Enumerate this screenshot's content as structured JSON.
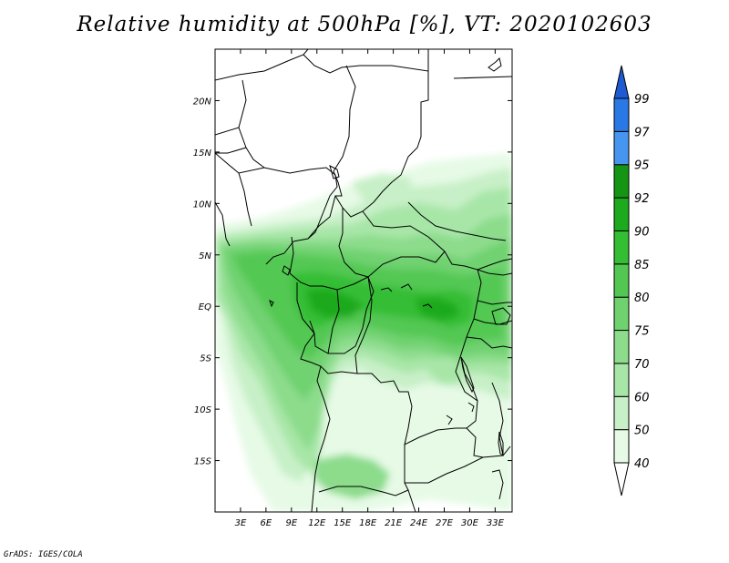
{
  "title": "Relative humidity at 500hPa [%], VT: 2020102603",
  "credit": "GrADS: IGES/COLA",
  "map": {
    "lon_range": [
      0,
      35
    ],
    "lat_range": [
      -20,
      25
    ],
    "lon_ticks": [
      "3E",
      "6E",
      "9E",
      "12E",
      "15E",
      "18E",
      "21E",
      "24E",
      "27E",
      "30E",
      "33E"
    ],
    "lat_ticks": [
      "20N",
      "15N",
      "10N",
      "5N",
      "EQ",
      "5S",
      "10S",
      "15S"
    ],
    "border_color": "#000000"
  },
  "colorbar": {
    "levels": [
      "40",
      "50",
      "60",
      "70",
      "75",
      "80",
      "85",
      "90",
      "92",
      "95",
      "97",
      "99"
    ],
    "colors": [
      "#e6fae6",
      "#c8f0c8",
      "#a8e6a8",
      "#8cdc8c",
      "#6fd26f",
      "#52c852",
      "#34be34",
      "#1eaa1e",
      "#149614",
      "#4696f0",
      "#2878e6",
      "#1e5ad2"
    ],
    "extend": "both"
  }
}
